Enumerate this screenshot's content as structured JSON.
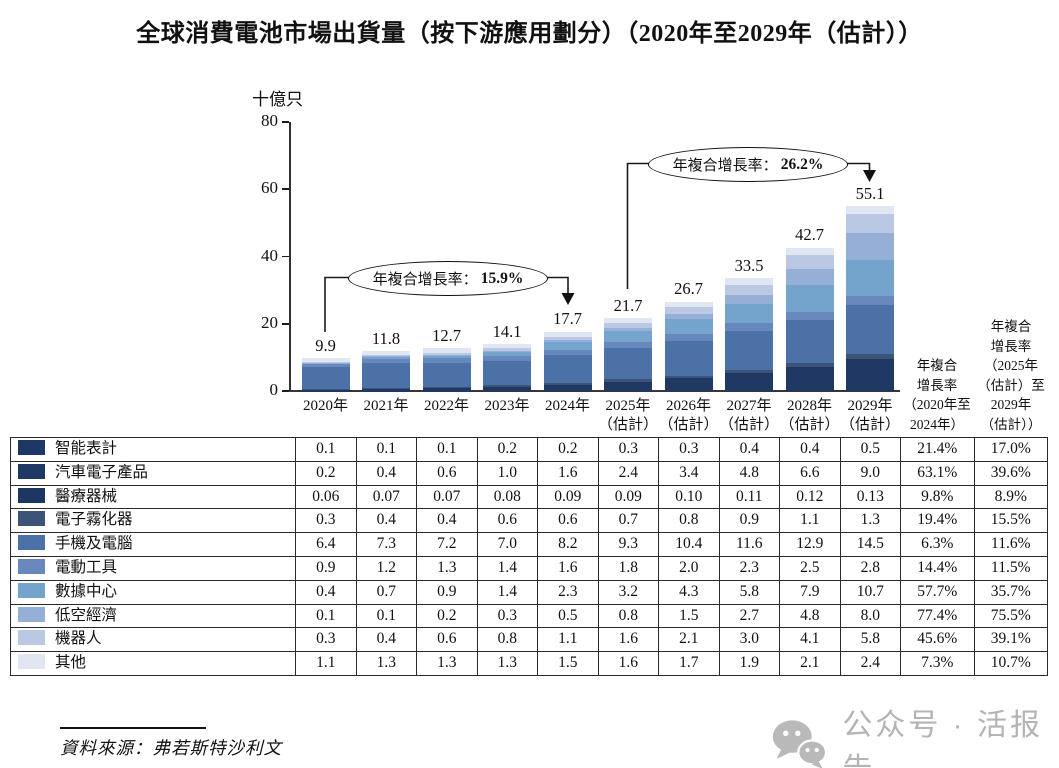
{
  "title": "全球消費電池市場出貨量（按下游應用劃分）（2020年至2029年（估計））",
  "chart_data": {
    "type": "bar",
    "stacked": true,
    "title": "全球消費電池市場出貨量（按下游應用劃分）（2020年至2029年（估計））",
    "xlabel": "",
    "ylabel": "十億只",
    "ylim": [
      0,
      80
    ],
    "yticks": [
      0,
      20,
      40,
      60,
      80
    ],
    "grid": false,
    "legend_position": "table-left",
    "categories": [
      "2020年",
      "2021年",
      "2022年",
      "2023年",
      "2024年",
      "2025年（估計）",
      "2026年（估計）",
      "2027年（估計）",
      "2028年（估計）",
      "2029年（估計）"
    ],
    "x_labels": [
      [
        "2020年"
      ],
      [
        "2021年"
      ],
      [
        "2022年"
      ],
      [
        "2023年"
      ],
      [
        "2024年"
      ],
      [
        "2025年",
        "（估計）"
      ],
      [
        "2026年",
        "（估計）"
      ],
      [
        "2027年",
        "（估計）"
      ],
      [
        "2028年",
        "（估計）"
      ],
      [
        "2029年",
        "（估計）"
      ]
    ],
    "totals": [
      "9.9",
      "11.8",
      "12.7",
      "14.1",
      "17.7",
      "21.7",
      "26.7",
      "33.5",
      "42.7",
      "55.1"
    ],
    "series": [
      {
        "name": "智能表計",
        "color": "#1E3765",
        "values": [
          "0.1",
          "0.1",
          "0.1",
          "0.2",
          "0.2",
          "0.3",
          "0.3",
          "0.4",
          "0.4",
          "0.5"
        ],
        "cagr_2020_2024": "21.4%",
        "cagr_2025e_2029e": "17.0%"
      },
      {
        "name": "汽車電子產品",
        "color": "#1F3864",
        "values": [
          "0.2",
          "0.4",
          "0.6",
          "1.0",
          "1.6",
          "2.4",
          "3.4",
          "4.8",
          "6.6",
          "9.0"
        ],
        "cagr_2020_2024": "63.1%",
        "cagr_2025e_2029e": "39.6%"
      },
      {
        "name": "醫療器械",
        "color": "#1D3662",
        "values": [
          "0.06",
          "0.07",
          "0.07",
          "0.08",
          "0.09",
          "0.09",
          "0.10",
          "0.11",
          "0.12",
          "0.13"
        ],
        "cagr_2020_2024": "9.8%",
        "cagr_2025e_2029e": "8.9%"
      },
      {
        "name": "電子霧化器",
        "color": "#3C5478",
        "values": [
          "0.3",
          "0.4",
          "0.4",
          "0.6",
          "0.6",
          "0.7",
          "0.8",
          "0.9",
          "1.1",
          "1.3"
        ],
        "cagr_2020_2024": "19.4%",
        "cagr_2025e_2029e": "15.5%"
      },
      {
        "name": "手機及電腦",
        "color": "#4B71A6",
        "values": [
          "6.4",
          "7.3",
          "7.2",
          "7.0",
          "8.2",
          "9.3",
          "10.4",
          "11.6",
          "12.9",
          "14.5"
        ],
        "cagr_2020_2024": "6.3%",
        "cagr_2025e_2029e": "11.6%"
      },
      {
        "name": "電動工具",
        "color": "#6888BD",
        "values": [
          "0.9",
          "1.2",
          "1.3",
          "1.4",
          "1.6",
          "1.8",
          "2.0",
          "2.3",
          "2.5",
          "2.8"
        ],
        "cagr_2020_2024": "14.4%",
        "cagr_2025e_2029e": "11.5%"
      },
      {
        "name": "數據中心",
        "color": "#74A3CC",
        "values": [
          "0.4",
          "0.7",
          "0.9",
          "1.4",
          "2.3",
          "3.2",
          "4.3",
          "5.8",
          "7.9",
          "10.7"
        ],
        "cagr_2020_2024": "57.7%",
        "cagr_2025e_2029e": "35.7%"
      },
      {
        "name": "低空經濟",
        "color": "#96AFD7",
        "values": [
          "0.1",
          "0.1",
          "0.2",
          "0.3",
          "0.5",
          "0.8",
          "1.5",
          "2.7",
          "4.8",
          "8.0"
        ],
        "cagr_2020_2024": "77.4%",
        "cagr_2025e_2029e": "75.5%"
      },
      {
        "name": "機器人",
        "color": "#BAC8E4",
        "values": [
          "0.3",
          "0.4",
          "0.6",
          "0.8",
          "1.1",
          "1.6",
          "2.1",
          "3.0",
          "4.1",
          "5.8"
        ],
        "cagr_2020_2024": "45.6%",
        "cagr_2025e_2029e": "39.1%"
      },
      {
        "name": "其他",
        "color": "#E0E7F3",
        "values": [
          "1.1",
          "1.3",
          "1.3",
          "1.3",
          "1.5",
          "1.6",
          "1.7",
          "1.9",
          "2.1",
          "2.4"
        ],
        "cagr_2020_2024": "7.3%",
        "cagr_2025e_2029e": "10.7%"
      }
    ],
    "annotations": [
      {
        "label": "年複合增長率：",
        "value": "15.9%",
        "span": "2020年至2024年"
      },
      {
        "label": "年複合增長率：",
        "value": "26.2%",
        "span": "2025年（估計）至2029年（估計）"
      }
    ]
  },
  "table": {
    "cagr_col1_header_lines": [
      "年複合",
      "增長率",
      "（2020年至",
      "2024年）"
    ],
    "cagr_col2_header_lines": [
      "年複合",
      "增長率",
      "（2025年",
      "（估計）至",
      "2029年",
      "（估計））"
    ]
  },
  "source": "資料來源：弗若斯特沙利文",
  "watermark": {
    "icon": "wechat-icon",
    "text": "公众号 · 活报告"
  }
}
